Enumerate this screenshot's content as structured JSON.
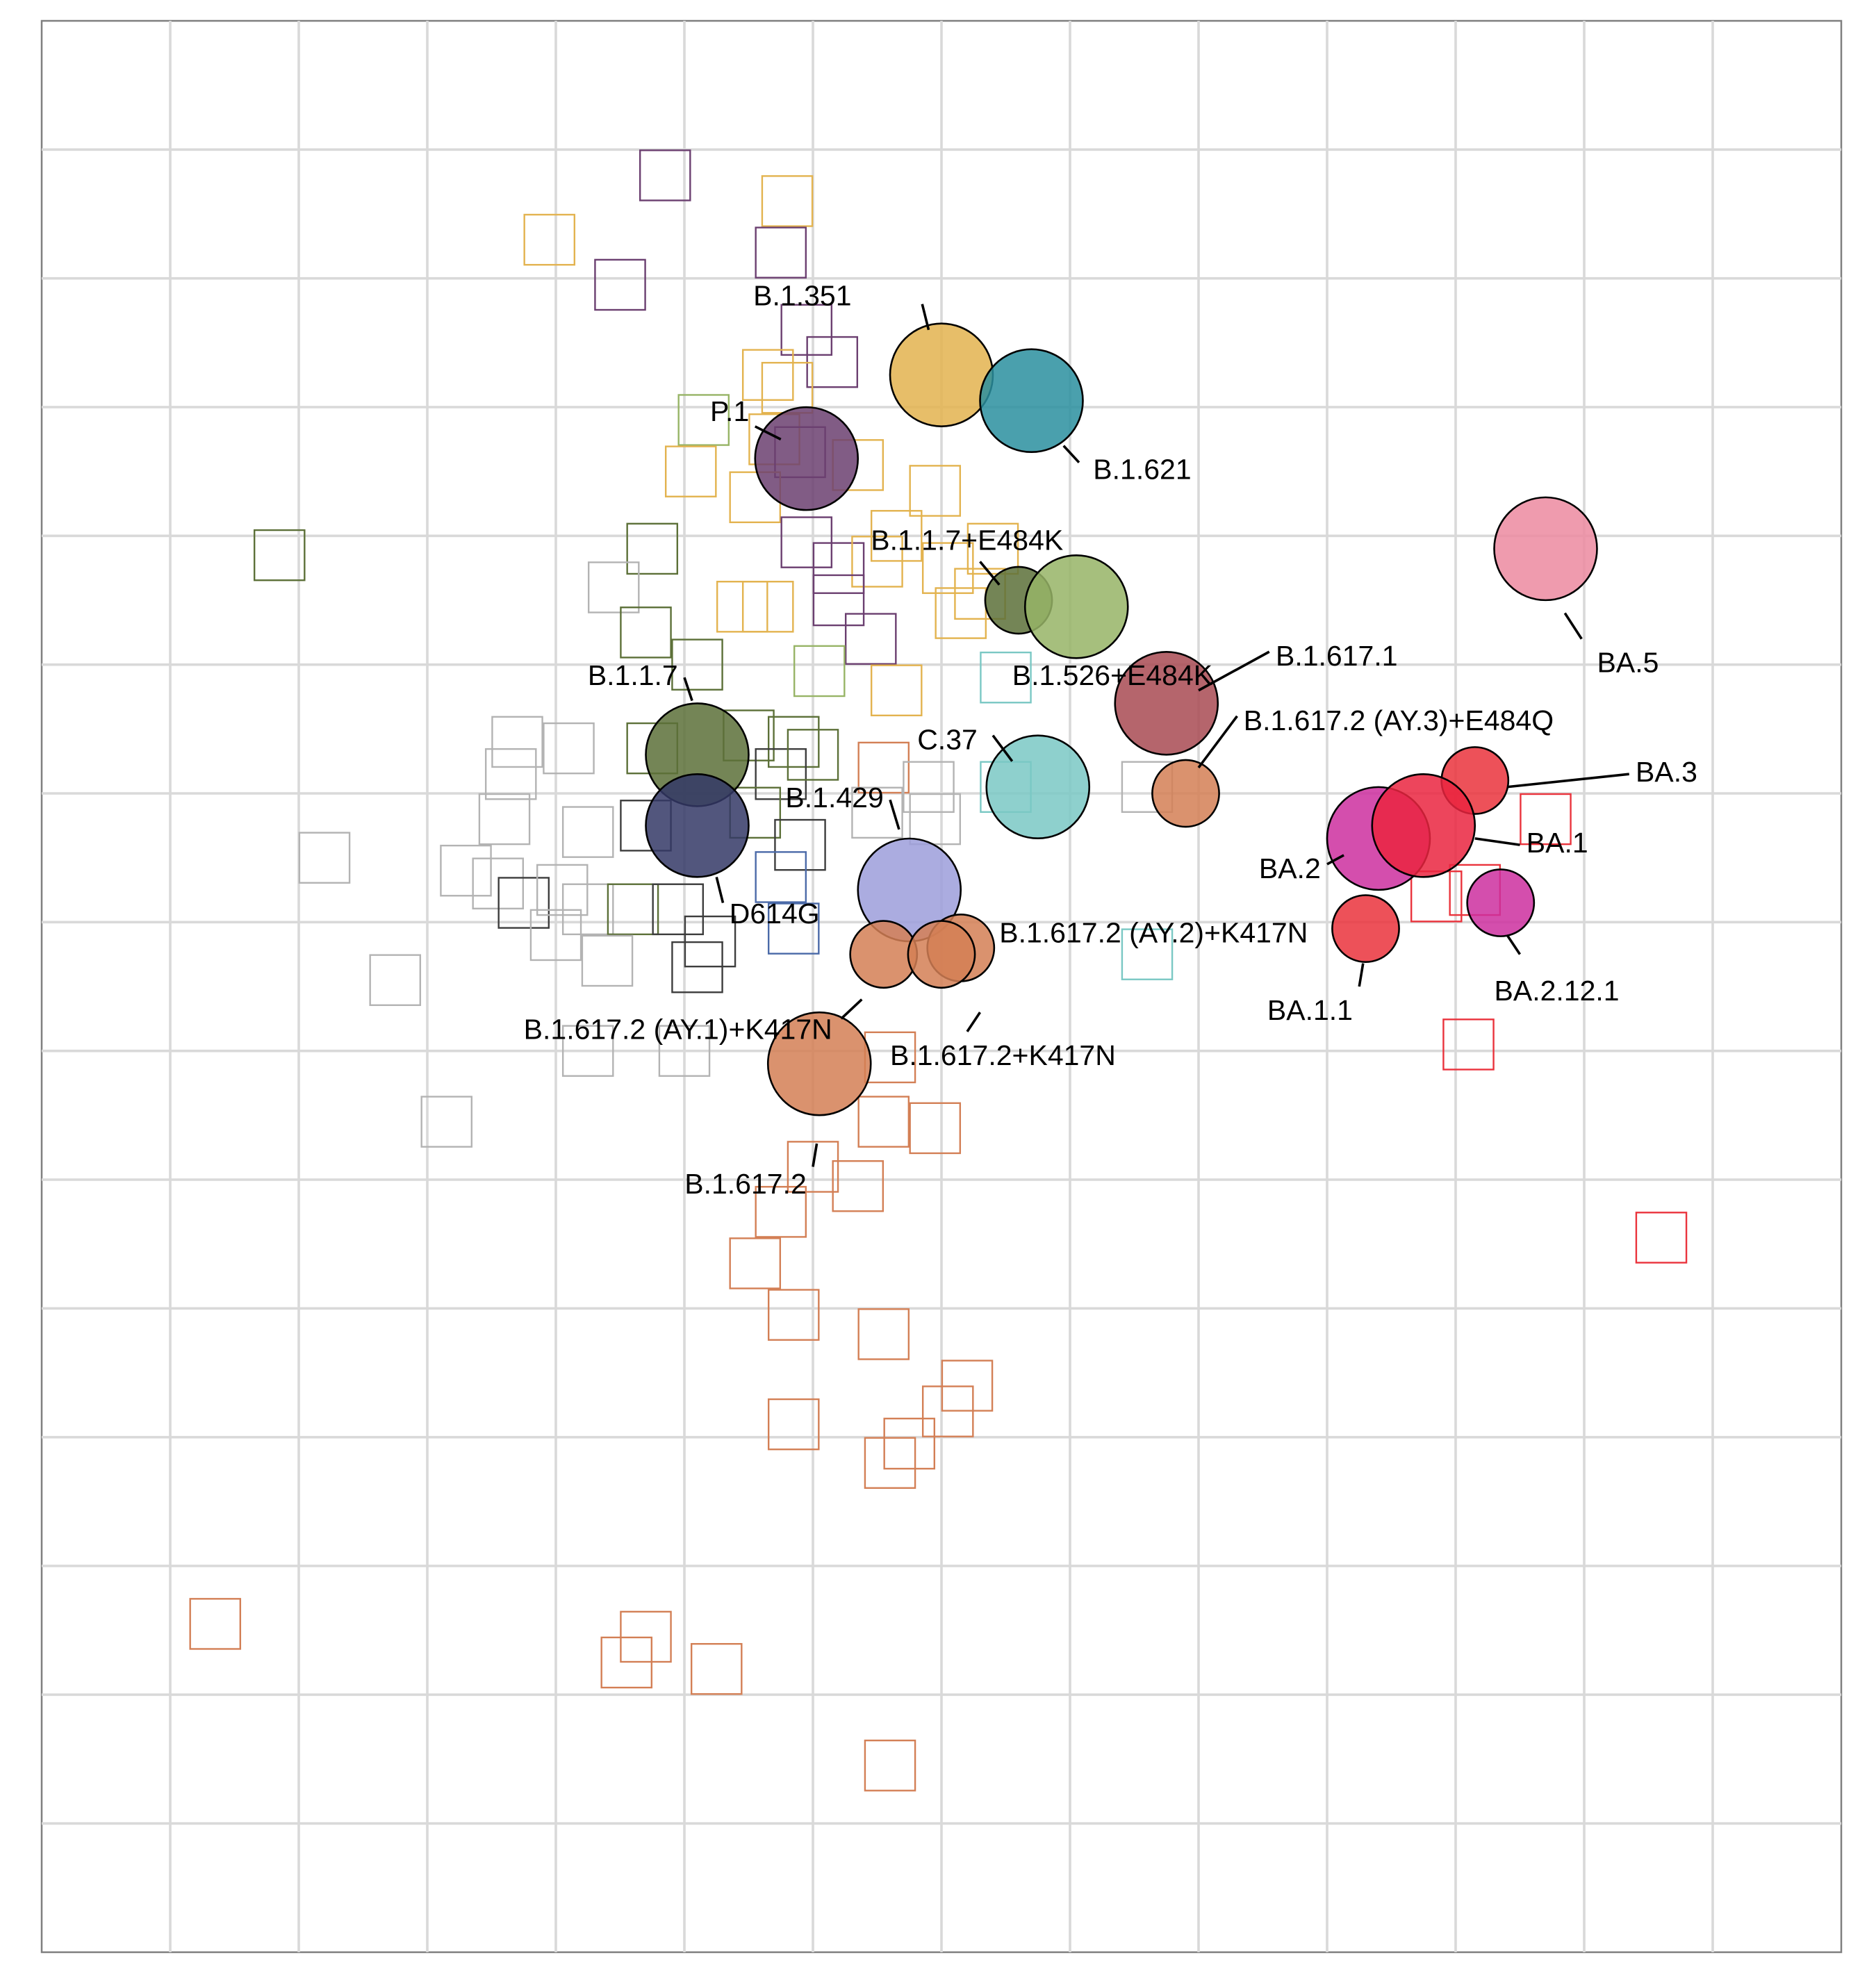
{
  "chart_data": {
    "type": "scatter",
    "title": "",
    "xlabel": "",
    "ylabel": "",
    "grid": true,
    "xlim": [
      0,
      14
    ],
    "ylim": [
      0,
      15
    ],
    "tick_labels": false,
    "antigens": [
      {
        "name": "B.1.351",
        "x": 7.0,
        "y": 12.25,
        "color": "#e3b34f",
        "size": 1.0
      },
      {
        "name": "B.1.621",
        "x": 7.7,
        "y": 12.05,
        "color": "#2a8f9f",
        "size": 1.0
      },
      {
        "name": "P.1",
        "x": 5.95,
        "y": 11.6,
        "color": "#6b3f70",
        "size": 1.0
      },
      {
        "name": "B.1.1.7+E484K",
        "x": 7.6,
        "y": 10.5,
        "color": "#5c7038",
        "size": 0.65
      },
      {
        "name": "B.1.526+E484K",
        "x": 8.05,
        "y": 10.45,
        "color": "#97b466",
        "size": 1.0
      },
      {
        "name": "BA.5",
        "x": 11.7,
        "y": 10.9,
        "color": "#ec8aa0",
        "size": 1.0
      },
      {
        "name": "B.1.617.1",
        "x": 8.75,
        "y": 9.7,
        "color": "#a84a52",
        "size": 1.0
      },
      {
        "name": "B.1.617.2 (AY.3)+E484Q",
        "x": 8.9,
        "y": 9.0,
        "color": "#d37f55",
        "size": 0.65
      },
      {
        "name": "B.1.1.7",
        "x": 5.1,
        "y": 9.3,
        "color": "#5c7038",
        "size": 1.0
      },
      {
        "name": "C.37",
        "x": 7.75,
        "y": 9.05,
        "color": "#7ac8c4",
        "size": 1.0
      },
      {
        "name": "BA.3",
        "x": 11.15,
        "y": 9.1,
        "color": "#ea333c",
        "size": 0.65
      },
      {
        "name": "BA.2",
        "x": 10.4,
        "y": 8.65,
        "color": "#cc2f9f",
        "size": 1.0
      },
      {
        "name": "BA.1",
        "x": 10.75,
        "y": 8.75,
        "color": "#ea2540",
        "size": 1.0
      },
      {
        "name": "D614G",
        "x": 5.1,
        "y": 8.75,
        "color": "#343866",
        "size": 1.0
      },
      {
        "name": "B.1.429",
        "x": 6.75,
        "y": 8.25,
        "color": "#9c9ddb",
        "size": 1.0
      },
      {
        "name": "BA.1.1",
        "x": 10.3,
        "y": 7.95,
        "color": "#ea333c",
        "size": 0.65
      },
      {
        "name": "BA.2.12.1",
        "x": 11.35,
        "y": 8.15,
        "color": "#cc2f9f",
        "size": 0.65
      },
      {
        "name": "B.1.617.2 (AY.2)+K417N",
        "x": 7.15,
        "y": 7.8,
        "color": "#d37f55",
        "size": 0.65
      },
      {
        "name": "B.1.617.2 (AY.1)+K417N",
        "x": 6.55,
        "y": 7.75,
        "color": "#d37f55",
        "size": 0.65
      },
      {
        "name": "B.1.617.2+K417N",
        "x": 7.0,
        "y": 7.75,
        "color": "#d37f55",
        "size": 0.65
      },
      {
        "name": "B.1.617.2",
        "x": 6.05,
        "y": 6.9,
        "color": "#d37f55",
        "size": 1.0
      }
    ],
    "sera": [
      {
        "x": 4.85,
        "y": 13.8,
        "color": "#6b3f70"
      },
      {
        "x": 5.8,
        "y": 13.6,
        "color": "#e3b34f"
      },
      {
        "x": 3.95,
        "y": 13.3,
        "color": "#e3b34f"
      },
      {
        "x": 5.75,
        "y": 13.2,
        "color": "#6b3f70"
      },
      {
        "x": 4.5,
        "y": 12.95,
        "color": "#6b3f70"
      },
      {
        "x": 5.95,
        "y": 12.6,
        "color": "#6b3f70"
      },
      {
        "x": 6.15,
        "y": 12.35,
        "color": "#6b3f70"
      },
      {
        "x": 5.65,
        "y": 12.25,
        "color": "#e3b34f"
      },
      {
        "x": 5.8,
        "y": 12.15,
        "color": "#e3b34f"
      },
      {
        "x": 5.15,
        "y": 11.9,
        "color": "#97b466"
      },
      {
        "x": 5.7,
        "y": 11.75,
        "color": "#e3b34f"
      },
      {
        "x": 6.35,
        "y": 11.55,
        "color": "#e3b34f"
      },
      {
        "x": 5.9,
        "y": 11.65,
        "color": "#6b3f70"
      },
      {
        "x": 5.05,
        "y": 11.5,
        "color": "#e3b34f"
      },
      {
        "x": 5.55,
        "y": 11.3,
        "color": "#e3b34f"
      },
      {
        "x": 6.95,
        "y": 11.35,
        "color": "#e3b34f"
      },
      {
        "x": 6.65,
        "y": 11.0,
        "color": "#e3b34f"
      },
      {
        "x": 7.4,
        "y": 10.9,
        "color": "#e3b34f"
      },
      {
        "x": 5.95,
        "y": 10.95,
        "color": "#6b3f70"
      },
      {
        "x": 6.2,
        "y": 10.75,
        "color": "#6b3f70"
      },
      {
        "x": 6.5,
        "y": 10.8,
        "color": "#e3b34f"
      },
      {
        "x": 7.05,
        "y": 10.75,
        "color": "#e3b34f"
      },
      {
        "x": 1.85,
        "y": 10.85,
        "color": "#5c7038"
      },
      {
        "x": 4.75,
        "y": 10.9,
        "color": "#5c7038"
      },
      {
        "x": 4.45,
        "y": 10.6,
        "color": "#b3b3b3"
      },
      {
        "x": 5.45,
        "y": 10.45,
        "color": "#e3b34f"
      },
      {
        "x": 5.65,
        "y": 10.45,
        "color": "#e3b34f"
      },
      {
        "x": 6.2,
        "y": 10.5,
        "color": "#6b3f70"
      },
      {
        "x": 7.15,
        "y": 10.4,
        "color": "#e3b34f"
      },
      {
        "x": 7.3,
        "y": 10.55,
        "color": "#e3b34f"
      },
      {
        "x": 4.7,
        "y": 10.25,
        "color": "#5c7038"
      },
      {
        "x": 6.45,
        "y": 10.2,
        "color": "#6b3f70"
      },
      {
        "x": 5.1,
        "y": 10.0,
        "color": "#5c7038"
      },
      {
        "x": 6.05,
        "y": 9.95,
        "color": "#97b466"
      },
      {
        "x": 6.65,
        "y": 9.8,
        "color": "#e3b34f"
      },
      {
        "x": 7.5,
        "y": 9.9,
        "color": "#7ac8c4"
      },
      {
        "x": 3.7,
        "y": 9.4,
        "color": "#b3b3b3"
      },
      {
        "x": 4.1,
        "y": 9.35,
        "color": "#b3b3b3"
      },
      {
        "x": 3.65,
        "y": 9.15,
        "color": "#b3b3b3"
      },
      {
        "x": 4.75,
        "y": 9.35,
        "color": "#5c7038"
      },
      {
        "x": 5.5,
        "y": 9.45,
        "color": "#5c7038"
      },
      {
        "x": 5.85,
        "y": 9.4,
        "color": "#5c7038"
      },
      {
        "x": 5.75,
        "y": 9.15,
        "color": "#3d3d3d"
      },
      {
        "x": 6.0,
        "y": 9.3,
        "color": "#5c7038"
      },
      {
        "x": 6.55,
        "y": 9.2,
        "color": "#d37f55"
      },
      {
        "x": 6.9,
        "y": 9.05,
        "color": "#b3b3b3"
      },
      {
        "x": 7.5,
        "y": 9.05,
        "color": "#7ac8c4"
      },
      {
        "x": 8.6,
        "y": 9.05,
        "color": "#b3b3b3"
      },
      {
        "x": 3.6,
        "y": 8.8,
        "color": "#b3b3b3"
      },
      {
        "x": 4.25,
        "y": 8.7,
        "color": "#b3b3b3"
      },
      {
        "x": 4.7,
        "y": 8.75,
        "color": "#3d3d3d"
      },
      {
        "x": 5.55,
        "y": 8.85,
        "color": "#5c7038"
      },
      {
        "x": 5.9,
        "y": 8.6,
        "color": "#3d3d3d"
      },
      {
        "x": 6.5,
        "y": 8.85,
        "color": "#b3b3b3"
      },
      {
        "x": 6.95,
        "y": 8.8,
        "color": "#b3b3b3"
      },
      {
        "x": 2.2,
        "y": 8.5,
        "color": "#b3b3b3"
      },
      {
        "x": 3.3,
        "y": 8.4,
        "color": "#b3b3b3"
      },
      {
        "x": 3.55,
        "y": 8.3,
        "color": "#b3b3b3"
      },
      {
        "x": 3.75,
        "y": 8.15,
        "color": "#3d3d3d"
      },
      {
        "x": 4.05,
        "y": 8.25,
        "color": "#b3b3b3"
      },
      {
        "x": 4.25,
        "y": 8.1,
        "color": "#b3b3b3"
      },
      {
        "x": 4.6,
        "y": 8.1,
        "color": "#5c7038"
      },
      {
        "x": 4.95,
        "y": 8.1,
        "color": "#3d3d3d"
      },
      {
        "x": 5.75,
        "y": 8.35,
        "color": "#4b6aa8"
      },
      {
        "x": 5.85,
        "y": 7.95,
        "color": "#4b6aa8"
      },
      {
        "x": 5.2,
        "y": 7.85,
        "color": "#3d3d3d"
      },
      {
        "x": 4.4,
        "y": 7.7,
        "color": "#b3b3b3"
      },
      {
        "x": 4.0,
        "y": 7.9,
        "color": "#b3b3b3"
      },
      {
        "x": 2.75,
        "y": 7.55,
        "color": "#b3b3b3"
      },
      {
        "x": 5.1,
        "y": 7.65,
        "color": "#3d3d3d"
      },
      {
        "x": 8.6,
        "y": 7.75,
        "color": "#7ac8c4"
      },
      {
        "x": 10.85,
        "y": 8.2,
        "color": "#ea333c"
      },
      {
        "x": 11.15,
        "y": 8.25,
        "color": "#ea333c"
      },
      {
        "x": 11.7,
        "y": 8.8,
        "color": "#ea333c"
      },
      {
        "x": 11.1,
        "y": 7.05,
        "color": "#ea333c"
      },
      {
        "x": 12.6,
        "y": 5.55,
        "color": "#ea333c"
      },
      {
        "x": 4.25,
        "y": 7.0,
        "color": "#b3b3b3"
      },
      {
        "x": 5.0,
        "y": 7.0,
        "color": "#b3b3b3"
      },
      {
        "x": 3.15,
        "y": 6.45,
        "color": "#b3b3b3"
      },
      {
        "x": 6.6,
        "y": 6.95,
        "color": "#d37f55"
      },
      {
        "x": 6.55,
        "y": 6.45,
        "color": "#d37f55"
      },
      {
        "x": 6.95,
        "y": 6.4,
        "color": "#d37f55"
      },
      {
        "x": 6.0,
        "y": 6.1,
        "color": "#d37f55"
      },
      {
        "x": 6.35,
        "y": 5.95,
        "color": "#d37f55"
      },
      {
        "x": 5.75,
        "y": 5.75,
        "color": "#d37f55"
      },
      {
        "x": 5.55,
        "y": 5.35,
        "color": "#d37f55"
      },
      {
        "x": 5.85,
        "y": 4.95,
        "color": "#d37f55"
      },
      {
        "x": 6.55,
        "y": 4.8,
        "color": "#d37f55"
      },
      {
        "x": 7.2,
        "y": 4.4,
        "color": "#d37f55"
      },
      {
        "x": 7.05,
        "y": 4.2,
        "color": "#d37f55"
      },
      {
        "x": 5.85,
        "y": 4.1,
        "color": "#d37f55"
      },
      {
        "x": 6.75,
        "y": 3.95,
        "color": "#d37f55"
      },
      {
        "x": 6.6,
        "y": 3.8,
        "color": "#d37f55"
      },
      {
        "x": 1.35,
        "y": 2.55,
        "color": "#d37f55"
      },
      {
        "x": 4.7,
        "y": 2.45,
        "color": "#d37f55"
      },
      {
        "x": 4.55,
        "y": 2.25,
        "color": "#d37f55"
      },
      {
        "x": 5.25,
        "y": 2.2,
        "color": "#d37f55"
      },
      {
        "x": 6.6,
        "y": 1.45,
        "color": "#d37f55"
      }
    ],
    "labels": [
      {
        "name": "B.1.351",
        "tx": 6.3,
        "ty": 12.85,
        "anchor": "end",
        "line": [
          6.85,
          12.8,
          6.9,
          12.6
        ]
      },
      {
        "name": "B.1.621",
        "tx": 8.18,
        "ty": 11.5,
        "anchor": "start",
        "line": [
          7.95,
          11.7,
          8.07,
          11.57
        ]
      },
      {
        "name": "P.1",
        "tx": 5.2,
        "ty": 11.95,
        "anchor": "start",
        "line": [
          5.55,
          11.85,
          5.75,
          11.75
        ]
      },
      {
        "name": "B.1.1.7+E484K",
        "tx": 6.45,
        "ty": 10.95,
        "anchor": "start",
        "line": [
          7.3,
          10.8,
          7.45,
          10.62
        ]
      },
      {
        "name": "B.1.526+E484K",
        "tx": 7.55,
        "ty": 9.9,
        "anchor": "start",
        "line": null
      },
      {
        "name": "B.1.617.1",
        "tx": 9.6,
        "ty": 10.05,
        "anchor": "start",
        "line": [
          9.0,
          9.8,
          9.55,
          10.1
        ]
      },
      {
        "name": "B.1.617.2 (AY.3)+E484Q",
        "tx": 9.35,
        "ty": 9.55,
        "anchor": "start",
        "line": [
          9.0,
          9.2,
          9.3,
          9.6
        ]
      },
      {
        "name": "BA.5",
        "tx": 12.1,
        "ty": 10.0,
        "anchor": "start",
        "line": [
          11.85,
          10.4,
          11.98,
          10.2
        ]
      },
      {
        "name": "B.1.1.7",
        "tx": 4.95,
        "ty": 9.9,
        "anchor": "end",
        "line": [
          5.0,
          9.9,
          5.06,
          9.72
        ]
      },
      {
        "name": "C.37",
        "tx": 7.28,
        "ty": 9.4,
        "anchor": "end",
        "line": [
          7.4,
          9.45,
          7.55,
          9.25
        ]
      },
      {
        "name": "BA.3",
        "tx": 12.4,
        "ty": 9.15,
        "anchor": "start",
        "line": [
          11.4,
          9.05,
          12.35,
          9.15
        ]
      },
      {
        "name": "BA.1",
        "tx": 11.55,
        "ty": 8.6,
        "anchor": "start",
        "line": [
          11.15,
          8.65,
          11.5,
          8.6
        ]
      },
      {
        "name": "BA.2",
        "tx": 9.95,
        "ty": 8.4,
        "anchor": "end",
        "line": [
          10.0,
          8.45,
          10.13,
          8.52
        ]
      },
      {
        "name": "B.1.429",
        "tx": 6.55,
        "ty": 8.95,
        "anchor": "end",
        "line": [
          6.6,
          8.95,
          6.67,
          8.72
        ]
      },
      {
        "name": "D614G",
        "tx": 5.35,
        "ty": 8.05,
        "anchor": "start",
        "line": [
          5.25,
          8.35,
          5.3,
          8.15
        ]
      },
      {
        "name": "B.1.617.2 (AY.2)+K417N",
        "tx": 7.45,
        "ty": 7.9,
        "anchor": "start",
        "line": null
      },
      {
        "name": "BA.1.1",
        "tx": 10.2,
        "ty": 7.3,
        "anchor": "end",
        "line": [
          10.25,
          7.5,
          10.28,
          7.68
        ]
      },
      {
        "name": "BA.2.12.1",
        "tx": 11.3,
        "ty": 7.45,
        "anchor": "start",
        "line": [
          11.4,
          7.9,
          11.5,
          7.75
        ]
      },
      {
        "name": "B.1.617.2 (AY.1)+K417N",
        "tx": 6.15,
        "ty": 7.15,
        "anchor": "end",
        "line": [
          6.22,
          7.25,
          6.38,
          7.4
        ]
      },
      {
        "name": "B.1.617.2+K417N",
        "tx": 6.6,
        "ty": 6.95,
        "anchor": "start",
        "line": [
          7.2,
          7.15,
          7.3,
          7.3
        ]
      },
      {
        "name": "B.1.617.2",
        "tx": 5.95,
        "ty": 5.95,
        "anchor": "end",
        "line": [
          6.0,
          6.1,
          6.03,
          6.28
        ]
      }
    ]
  }
}
